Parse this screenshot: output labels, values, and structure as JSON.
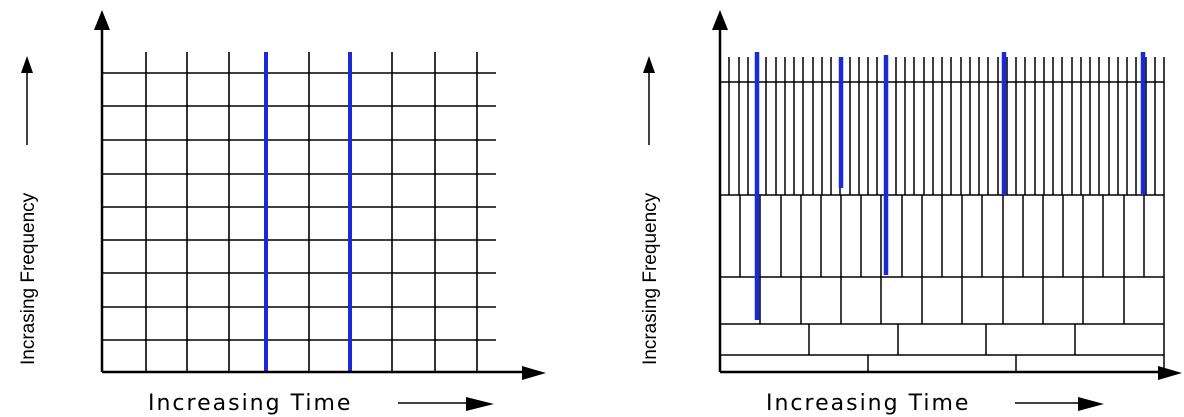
{
  "panels": [
    {
      "id": "stft",
      "ylabel": "Incrasing Frequency",
      "xlabel": "Increasing Time"
    },
    {
      "id": "wavelet",
      "ylabel": "Incrasing Frequency",
      "xlabel": "Increasing Time"
    }
  ],
  "colors": {
    "grid": "#000000",
    "highlight": "#1a2bd6"
  }
}
